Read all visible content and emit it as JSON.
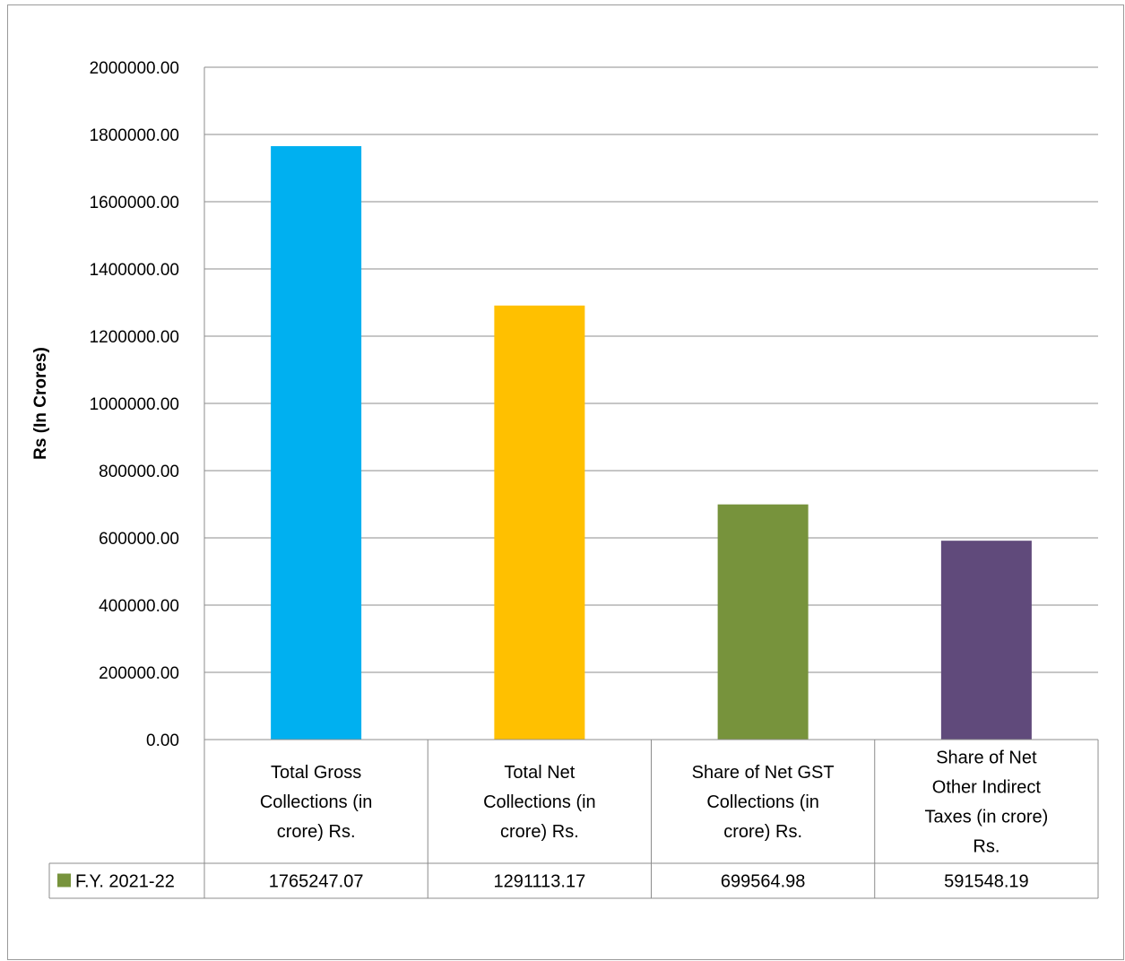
{
  "chart_data": {
    "type": "bar",
    "ylabel": "Rs (In Crores)",
    "xlabel": "",
    "ylim": [
      0,
      2000000
    ],
    "y_tick_step": 200000,
    "y_tick_labels": [
      "0.00",
      "200000.00",
      "400000.00",
      "600000.00",
      "800000.00",
      "1000000.00",
      "1200000.00",
      "1400000.00",
      "1600000.00",
      "1800000.00",
      "2000000.00"
    ],
    "grid": true,
    "legend_placement": "data-table",
    "categories": [
      [
        "Total Gross",
        "Collections (in",
        "crore) Rs."
      ],
      [
        "Total Net",
        "Collections (in",
        "crore) Rs."
      ],
      [
        "Share of Net GST",
        "Collections (in",
        "crore) Rs."
      ],
      [
        "Share of Net",
        "Other Indirect",
        "Taxes (in crore)",
        "Rs."
      ]
    ],
    "series": [
      {
        "name": "F.Y. 2021-22",
        "legend_color": "#77933c",
        "values": [
          1765247.07,
          1291113.17,
          699564.98,
          591548.19
        ],
        "value_labels": [
          "1765247.07",
          "1291113.17",
          "699564.98",
          "591548.19"
        ]
      }
    ],
    "bar_colors": [
      "#00b0f0",
      "#ffc000",
      "#77933c",
      "#604a7b"
    ]
  }
}
